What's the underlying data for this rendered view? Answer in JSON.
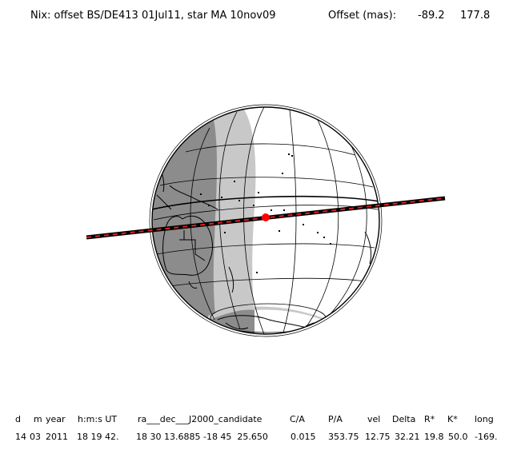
{
  "header": {
    "title": "Nix: offset BS/DE413 01Jul11, star MA 10nov09",
    "offset_label": "Offset (mas):",
    "offset_x": "-89.2",
    "offset_y": "177.8"
  },
  "table": {
    "headers": [
      "d",
      "m",
      "year",
      "h:m:s UT",
      "ra___dec___J2000_candidate",
      "C/A",
      "P/A",
      "vel",
      "Delta",
      "R*",
      "K*",
      "long"
    ],
    "values": [
      "14",
      "03",
      "2011",
      "18 19 42.",
      "18 30 13.6885 -18 45  25.650",
      "0.015",
      "353.75",
      "12.75",
      "32.21",
      "19.8",
      "50.0",
      "-169."
    ]
  },
  "colors": {
    "night": "#8c8c8c",
    "twilight": "#c8c8c8",
    "day": "#ffffff",
    "track": "#000000",
    "track_dash": "#e02020",
    "center_point": "#ff0000"
  }
}
